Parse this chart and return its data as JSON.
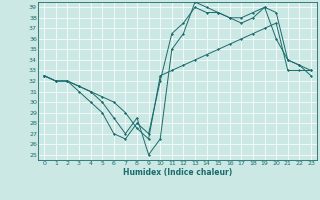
{
  "xlabel": "Humidex (Indice chaleur)",
  "bg_color": "#cce8e4",
  "line_color": "#1a6b6b",
  "grid_color": "#ffffff",
  "xlim": [
    -0.5,
    23.5
  ],
  "ylim": [
    24.5,
    39.5
  ],
  "yticks": [
    25,
    26,
    27,
    28,
    29,
    30,
    31,
    32,
    33,
    34,
    35,
    36,
    37,
    38,
    39
  ],
  "xticks": [
    0,
    1,
    2,
    3,
    4,
    5,
    6,
    7,
    8,
    9,
    10,
    11,
    12,
    13,
    14,
    15,
    16,
    17,
    18,
    19,
    20,
    21,
    22,
    23
  ],
  "series": [
    {
      "x": [
        0,
        1,
        2,
        3,
        4,
        5,
        6,
        7,
        8,
        9,
        10,
        11,
        12,
        13,
        14,
        15,
        16,
        17,
        18,
        19,
        20,
        21,
        22,
        23
      ],
      "y": [
        32.5,
        32,
        32,
        31.5,
        31,
        30.5,
        30,
        29,
        27.5,
        26.5,
        32.5,
        33,
        33.5,
        34,
        34.5,
        35,
        35.5,
        36,
        36.5,
        37,
        37.5,
        33,
        33,
        33
      ]
    },
    {
      "x": [
        0,
        1,
        2,
        3,
        4,
        5,
        6,
        7,
        8,
        9,
        10,
        11,
        12,
        13,
        14,
        15,
        16,
        17,
        18,
        19,
        20,
        21,
        22,
        23
      ],
      "y": [
        32.5,
        32,
        32,
        31,
        30,
        29,
        27,
        26.5,
        28,
        27,
        32,
        36.5,
        37.5,
        39,
        38.5,
        38.5,
        38,
        38,
        38.5,
        39,
        38.5,
        34,
        33.5,
        32.5
      ]
    },
    {
      "x": [
        0,
        1,
        2,
        3,
        4,
        5,
        6,
        7,
        8,
        9,
        10,
        11,
        12,
        13,
        14,
        15,
        16,
        17,
        18,
        19,
        20,
        21,
        22,
        23
      ],
      "y": [
        32.5,
        32,
        32,
        31.5,
        31,
        30,
        28.5,
        27,
        28.5,
        25,
        26.5,
        35,
        36.5,
        39.5,
        39,
        38.5,
        38,
        37.5,
        38,
        39,
        36,
        34,
        33.5,
        33
      ]
    }
  ]
}
